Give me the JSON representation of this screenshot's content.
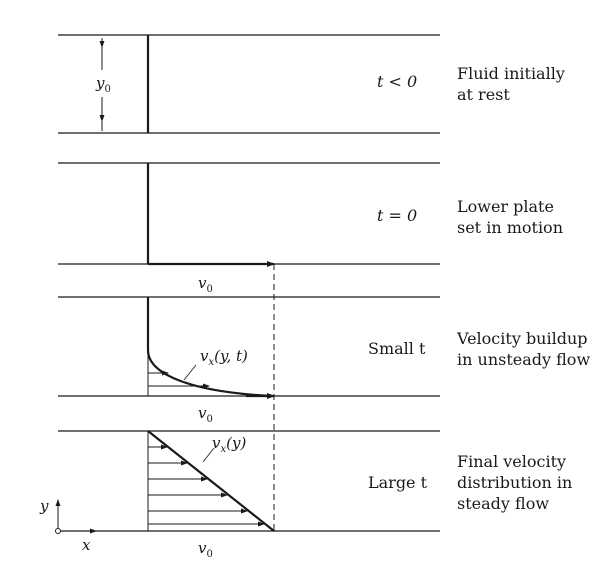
{
  "panels": [
    {
      "time_label": "t < 0",
      "description": [
        "Fluid initially",
        "at rest"
      ]
    },
    {
      "time_label": "t = 0",
      "description": [
        "Lower plate",
        "set in motion"
      ]
    },
    {
      "time_label": "Small t",
      "description": [
        "Velocity buildup",
        "in unsteady flow"
      ]
    },
    {
      "time_label": "Large t",
      "description": [
        "Final velocity",
        "distribution in",
        "steady flow"
      ]
    }
  ],
  "symbols": {
    "gap": "y",
    "gap_sub": "0",
    "plate_velocity": "v",
    "plate_velocity_sub": "0",
    "profile_unsteady": "v",
    "profile_unsteady_sub": "x",
    "profile_unsteady_args": "(y, t)",
    "profile_steady": "v",
    "profile_steady_sub": "x",
    "profile_steady_args": "(y)",
    "axis_y": "y",
    "axis_x": "x"
  }
}
